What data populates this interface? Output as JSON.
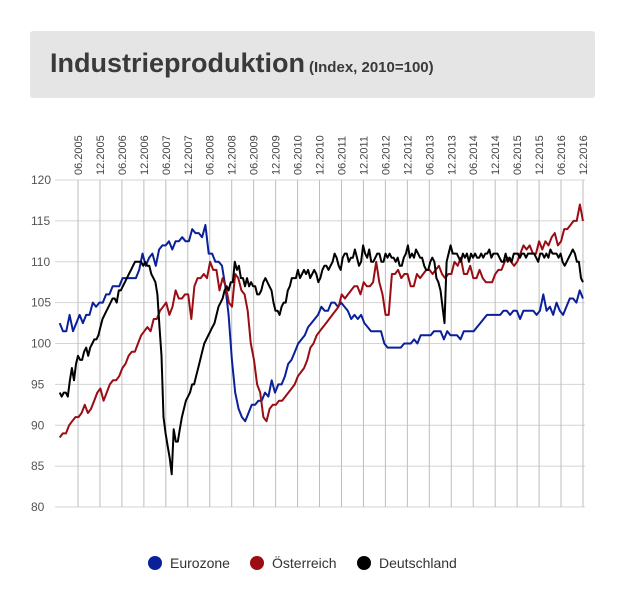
{
  "header": {
    "title": "Industrieproduktion",
    "subtitle": "(Index, 2010=100)"
  },
  "chart_data": {
    "type": "line",
    "title": "Industrieproduktion",
    "subtitle": "(Index, 2010=100)",
    "x_start": "2005.01",
    "x_end": "2016.12",
    "x_labels": [
      "06.2005",
      "12.2005",
      "06.2006",
      "12.2006",
      "06.2007",
      "12.2007",
      "06.2008",
      "12.2008",
      "06.2009",
      "12.2009",
      "06.2010",
      "12.2010",
      "06.2011",
      "12.2011",
      "06.2012",
      "12.2012",
      "06.2013",
      "12.2013",
      "06.2014",
      "12.2014",
      "06.2015",
      "12.2015",
      "06.2016",
      "12.2016"
    ],
    "y_ticks": [
      80,
      85,
      90,
      95,
      100,
      105,
      110,
      115,
      120
    ],
    "ylim": [
      80,
      120
    ],
    "grid": true,
    "legend_position": "bottom",
    "series": [
      {
        "name": "Eurozone",
        "color": "#0a1f9a",
        "values": [
          102.5,
          101.5,
          101.5,
          103.5,
          101.5,
          102.5,
          103.5,
          102.5,
          103.5,
          103.5,
          105,
          104.5,
          105,
          105,
          106,
          106,
          107,
          107,
          107,
          108,
          108,
          108,
          108,
          108,
          109,
          111,
          109.5,
          110.5,
          111,
          109.5,
          111.5,
          112,
          112,
          112.5,
          111.5,
          112.5,
          112.5,
          113,
          112.5,
          112.5,
          114,
          113.5,
          113.5,
          113,
          114.5,
          111,
          111,
          110,
          110,
          109.5,
          107,
          103.5,
          98,
          94,
          92,
          91,
          90.5,
          91.5,
          92.5,
          92.5,
          93,
          93,
          94,
          93.5,
          95.5,
          94,
          95,
          95,
          96,
          97.5,
          98,
          99,
          100,
          100.5,
          101,
          102,
          102.5,
          103,
          103.5,
          104.5,
          104,
          104,
          105,
          105,
          104.5,
          105,
          104.5,
          104,
          103,
          103.5,
          103,
          103.5,
          102.5,
          102,
          101.5,
          101.5,
          101.5,
          101.5,
          100,
          99.5,
          99.5,
          99.5,
          99.5,
          99.5,
          100,
          100,
          100,
          100.5,
          100,
          101,
          101,
          101,
          101,
          101.5,
          101.5,
          101.5,
          100.5,
          101.5,
          101,
          101,
          101,
          100.5,
          101.5,
          101.5,
          101.5,
          101.5,
          102,
          102.5,
          103,
          103.5,
          103.5,
          103.5,
          103.5,
          103.5,
          104,
          104,
          103.5,
          104,
          104,
          103,
          104,
          104,
          104,
          104,
          103.5,
          104,
          106,
          104,
          104.5,
          103.5,
          105,
          104,
          103.5,
          104.5,
          105.5,
          105.5,
          105,
          106.5,
          105.5
        ]
      },
      {
        "name": "Österreich",
        "color": "#9a0d14",
        "values": [
          88.5,
          89,
          89,
          90,
          90.5,
          91,
          91,
          91.5,
          92.5,
          91.5,
          92,
          93,
          94,
          94.5,
          93,
          94,
          95,
          95.5,
          95.5,
          96,
          97,
          97.5,
          98.5,
          99,
          99,
          100,
          101,
          101.5,
          102,
          101.5,
          103,
          103,
          104,
          104.5,
          105,
          103.5,
          104.5,
          106.5,
          105.5,
          105.5,
          106,
          106,
          103,
          107,
          108,
          108,
          108.5,
          108,
          110,
          109,
          109,
          106.5,
          108,
          107,
          105,
          104.5,
          108.5,
          108,
          106.5,
          106,
          104,
          100,
          98,
          95,
          94,
          91,
          90.5,
          92,
          92.5,
          92.5,
          93,
          93,
          93.5,
          94,
          94.5,
          95,
          96,
          96.5,
          97,
          98,
          99.5,
          100,
          101,
          101.5,
          102,
          102.5,
          103,
          103.5,
          104,
          104.5,
          106,
          105.5,
          106,
          106.5,
          107,
          107,
          106,
          107.5,
          107,
          107,
          107.5,
          110,
          107.5,
          106,
          103.5,
          103.5,
          108.5,
          108.5,
          109,
          108,
          108.5,
          108.5,
          107,
          107,
          108.5,
          108,
          108.5,
          109,
          109,
          108.5,
          109,
          109.5,
          108.5,
          108,
          108.5,
          108.5,
          110,
          109.5,
          110.5,
          108.5,
          108.5,
          109.5,
          108,
          108,
          109,
          108,
          107.5,
          107.5,
          107.5,
          108.5,
          109,
          109,
          110,
          110.5,
          110,
          109.5,
          110,
          111,
          112,
          111.5,
          112,
          111,
          111,
          112.5,
          111.5,
          112.5,
          112,
          113,
          113.5,
          112,
          112.5,
          114,
          114,
          114.5,
          115,
          115,
          117,
          115
        ]
      },
      {
        "name": "Deutschland",
        "color": "#000000",
        "values": [
          94,
          93.5,
          94,
          94,
          93.5,
          95.5,
          97,
          95.5,
          97.5,
          98.5,
          98,
          98,
          99,
          99.5,
          98.5,
          99.5,
          100,
          100.5,
          100.5,
          101,
          102,
          103,
          103.5,
          104,
          104.5,
          105,
          105.5,
          105.5,
          105,
          106.5,
          106.5,
          107,
          107.5,
          108,
          108.5,
          109,
          109.5,
          110,
          110,
          110,
          110,
          109.5,
          110,
          109.5,
          109.5,
          108.5,
          108,
          107.5,
          106,
          102,
          98.5,
          91,
          89,
          87.5,
          86,
          84,
          89.5,
          88,
          88,
          89.5,
          91,
          92,
          93,
          93.5,
          94,
          95,
          95,
          96,
          97,
          98,
          99,
          100,
          100.5,
          101,
          101.5,
          102,
          102.5,
          103.5,
          104.5,
          105,
          105.5,
          106.5,
          107,
          106.5,
          107.5,
          107.5,
          110,
          109,
          109.5,
          108,
          108,
          107,
          108,
          107,
          107.5,
          107,
          107,
          106,
          106,
          106.5,
          107.5,
          108,
          107.5,
          107,
          106.5,
          105,
          104,
          104,
          103.5,
          104.5,
          105,
          105,
          106.5,
          107,
          108,
          108,
          108,
          109,
          108,
          108.5,
          109,
          108.5,
          109,
          108,
          108.5,
          109,
          108.5,
          107.5,
          108,
          109,
          109.5,
          109.5,
          109,
          109.5,
          110,
          111,
          110.5,
          109.5,
          109,
          110.5,
          111,
          111,
          110,
          110.5,
          110.5,
          111.5,
          110.5,
          109.5,
          110,
          112,
          111,
          110.5,
          111.5,
          110,
          110,
          110.5,
          111,
          111,
          110,
          110,
          111,
          110.5,
          111,
          110.5,
          110.5,
          110,
          110.5,
          109.5,
          109.5,
          110.5,
          111,
          112,
          110.5,
          111,
          110.5,
          111.5,
          111,
          110.5,
          110.5,
          109.5,
          109,
          109,
          110,
          110.5,
          110,
          108,
          107.5,
          106.5,
          104.5,
          102.5,
          110,
          111,
          112,
          111,
          111,
          111,
          110.5,
          110,
          111,
          110.5,
          111,
          110,
          111,
          110.5,
          111,
          110.5,
          110.5,
          111,
          110.5,
          111,
          111,
          111.5,
          110.5,
          111,
          111,
          111,
          110.5,
          110,
          110,
          111,
          110,
          110.5,
          110,
          111,
          111,
          111,
          110.5,
          111,
          111,
          110.5,
          111,
          111,
          111,
          111,
          110.5,
          110,
          111,
          111,
          110.5,
          111,
          110.5,
          111.5,
          111,
          111,
          111,
          110.5,
          111,
          110,
          109.5,
          110,
          110.5,
          111,
          111.5,
          111,
          110,
          110,
          108,
          107.5
        ]
      }
    ]
  },
  "legend": {
    "items": [
      {
        "label": "Eurozone",
        "color": "#0a1f9a"
      },
      {
        "label": "Österreich",
        "color": "#9a0d14"
      },
      {
        "label": "Deutschland",
        "color": "#000000"
      }
    ]
  }
}
